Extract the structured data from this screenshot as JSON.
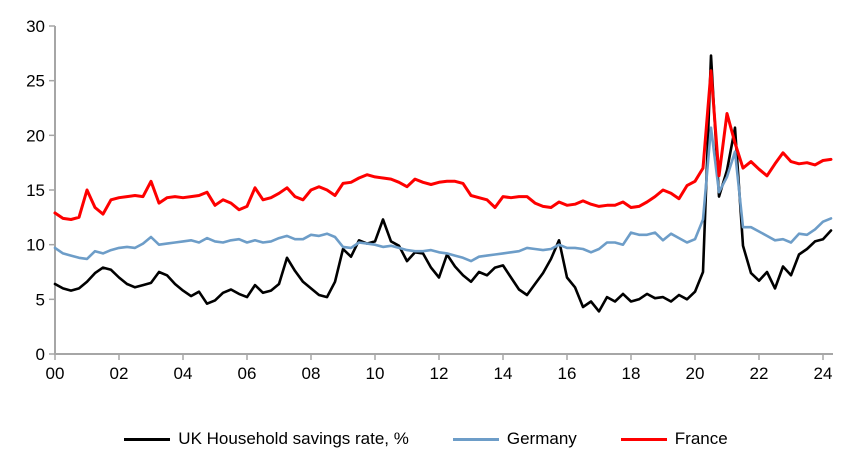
{
  "chart_data": {
    "type": "line",
    "title": "",
    "xlabel": "",
    "ylabel": "",
    "grid": false,
    "legend_position": "bottom",
    "x_axis": {
      "start_year": 2000,
      "step_years": 0.25,
      "end_year": 2024.25,
      "tick_labels": [
        "00",
        "02",
        "04",
        "06",
        "08",
        "10",
        "12",
        "14",
        "16",
        "18",
        "20",
        "22",
        "24"
      ],
      "tick_every_points": 8
    },
    "y_axis": {
      "min": 0,
      "max": 30,
      "tick_step": 5,
      "tick_labels": [
        "0",
        "5",
        "10",
        "15",
        "20",
        "25",
        "30"
      ]
    },
    "series": [
      {
        "name": "UK Household savings rate, %",
        "color": "#000000",
        "stroke_width": 2.6,
        "values": [
          6.4,
          6.0,
          5.8,
          6.0,
          6.6,
          7.4,
          7.9,
          7.7,
          7.0,
          6.4,
          6.1,
          6.3,
          6.5,
          7.5,
          7.2,
          6.4,
          5.8,
          5.3,
          5.7,
          4.6,
          4.9,
          5.6,
          5.9,
          5.5,
          5.2,
          6.3,
          5.6,
          5.8,
          6.4,
          8.8,
          7.6,
          6.6,
          6.0,
          5.4,
          5.2,
          6.6,
          9.6,
          8.9,
          10.4,
          10.1,
          10.3,
          12.3,
          10.3,
          9.9,
          8.5,
          9.3,
          9.2,
          7.9,
          7.0,
          9.1,
          8.0,
          7.2,
          6.6,
          7.5,
          7.2,
          7.9,
          8.1,
          7.0,
          5.9,
          5.4,
          6.4,
          7.4,
          8.7,
          10.4,
          7.0,
          6.1,
          4.3,
          4.8,
          3.9,
          5.2,
          4.8,
          5.5,
          4.8,
          5.0,
          5.5,
          5.1,
          5.2,
          4.8,
          5.4,
          5.0,
          5.7,
          7.5,
          27.3,
          14.4,
          16.8,
          20.7,
          9.9,
          7.4,
          6.7,
          7.5,
          6.0,
          8.0,
          7.2,
          9.1,
          9.6,
          10.3,
          10.5,
          11.3
        ]
      },
      {
        "name": "Germany",
        "color": "#6D9DC8",
        "stroke_width": 2.6,
        "values": [
          9.7,
          9.2,
          9.0,
          8.8,
          8.7,
          9.4,
          9.2,
          9.5,
          9.7,
          9.8,
          9.7,
          10.1,
          10.7,
          10.0,
          10.1,
          10.2,
          10.3,
          10.4,
          10.2,
          10.6,
          10.3,
          10.2,
          10.4,
          10.5,
          10.2,
          10.4,
          10.2,
          10.3,
          10.6,
          10.8,
          10.5,
          10.5,
          10.9,
          10.8,
          11.0,
          10.7,
          9.8,
          9.7,
          10.2,
          10.1,
          10.0,
          9.8,
          9.9,
          9.7,
          9.5,
          9.4,
          9.4,
          9.5,
          9.3,
          9.2,
          9.0,
          8.8,
          8.5,
          8.9,
          9.0,
          9.1,
          9.2,
          9.3,
          9.4,
          9.7,
          9.6,
          9.5,
          9.6,
          10.0,
          9.7,
          9.7,
          9.6,
          9.3,
          9.6,
          10.2,
          10.2,
          10.0,
          11.1,
          10.9,
          10.9,
          11.1,
          10.4,
          11.0,
          10.6,
          10.2,
          10.5,
          12.3,
          20.7,
          14.8,
          16.2,
          18.5,
          11.6,
          11.6,
          11.2,
          10.8,
          10.4,
          10.5,
          10.2,
          11.0,
          10.9,
          11.4,
          12.1,
          12.4
        ]
      },
      {
        "name": "France",
        "color": "#FE0000",
        "stroke_width": 3.0,
        "values": [
          12.9,
          12.4,
          12.3,
          12.5,
          15.0,
          13.4,
          12.8,
          14.1,
          14.3,
          14.4,
          14.5,
          14.4,
          15.8,
          13.8,
          14.3,
          14.4,
          14.3,
          14.4,
          14.5,
          14.8,
          13.6,
          14.1,
          13.8,
          13.2,
          13.5,
          15.2,
          14.1,
          14.3,
          14.7,
          15.2,
          14.4,
          14.1,
          15.0,
          15.3,
          15.0,
          14.5,
          15.6,
          15.7,
          16.1,
          16.4,
          16.2,
          16.1,
          16.0,
          15.7,
          15.3,
          16.0,
          15.7,
          15.5,
          15.7,
          15.8,
          15.8,
          15.6,
          14.5,
          14.3,
          14.1,
          13.4,
          14.4,
          14.3,
          14.4,
          14.4,
          13.8,
          13.5,
          13.4,
          13.9,
          13.6,
          13.7,
          14.0,
          13.7,
          13.5,
          13.6,
          13.6,
          13.9,
          13.4,
          13.5,
          13.9,
          14.4,
          15.0,
          14.7,
          14.2,
          15.4,
          15.8,
          17.0,
          25.9,
          16.3,
          22.0,
          19.3,
          17.0,
          17.6,
          16.9,
          16.3,
          17.4,
          18.4,
          17.6,
          17.4,
          17.5,
          17.3,
          17.7,
          17.8
        ]
      }
    ]
  },
  "legend": {
    "items": [
      {
        "label": "UK Household savings rate, %",
        "color": "#000000",
        "thickness": 3
      },
      {
        "label": "Germany",
        "color": "#6D9DC8",
        "thickness": 3
      },
      {
        "label": "France",
        "color": "#FE0000",
        "thickness": 3
      }
    ]
  },
  "style": {
    "axis_color": "#A6A6A6",
    "background": "#FFFFFF",
    "tick_font_size": 17
  }
}
